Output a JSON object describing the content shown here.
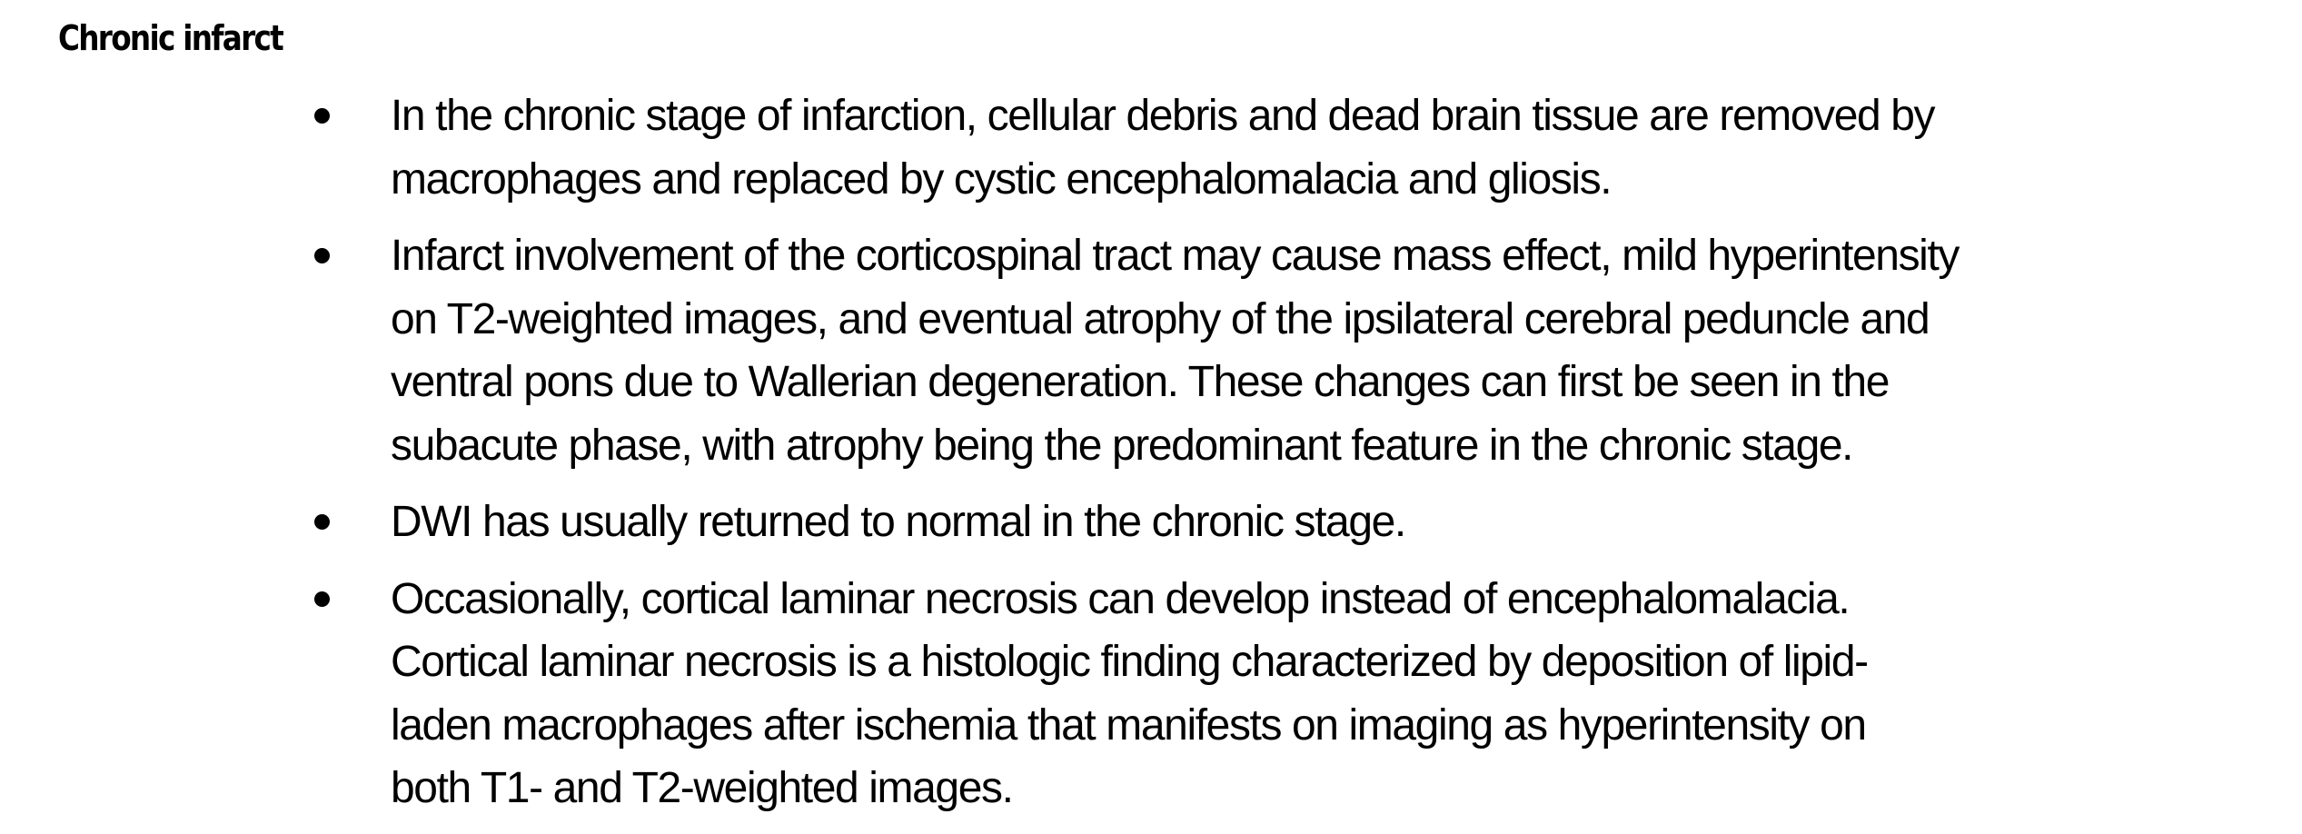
{
  "heading": "Chronic infarct",
  "bullets": [
    {
      "lines": [
        "In the chronic stage of infarction, cellular debris and dead brain tissue are removed by",
        "macrophages and replaced by cystic encephalomalacia and gliosis."
      ]
    },
    {
      "lines": [
        "Infarct involvement of the corticospinal tract may cause mass effect, mild hyperintensity",
        "on T2-weighted images, and eventual atrophy of the ipsilateral cerebral peduncle and",
        "ventral pons due to Wallerian degeneration. These changes can first be seen in the",
        "subacute phase, with atrophy being the predominant feature in the chronic stage."
      ]
    },
    {
      "lines": [
        "DWI has usually returned to normal in the chronic stage."
      ]
    },
    {
      "lines": [
        "Occasionally, cortical laminar necrosis can develop instead of encephalomalacia.",
        "Cortical laminar necrosis is a histologic finding characterized by deposition of lipid-",
        "laden macrophages after ischemia that manifests on imaging as hyperintensity on",
        "both T1- and T2-weighted images."
      ]
    }
  ]
}
